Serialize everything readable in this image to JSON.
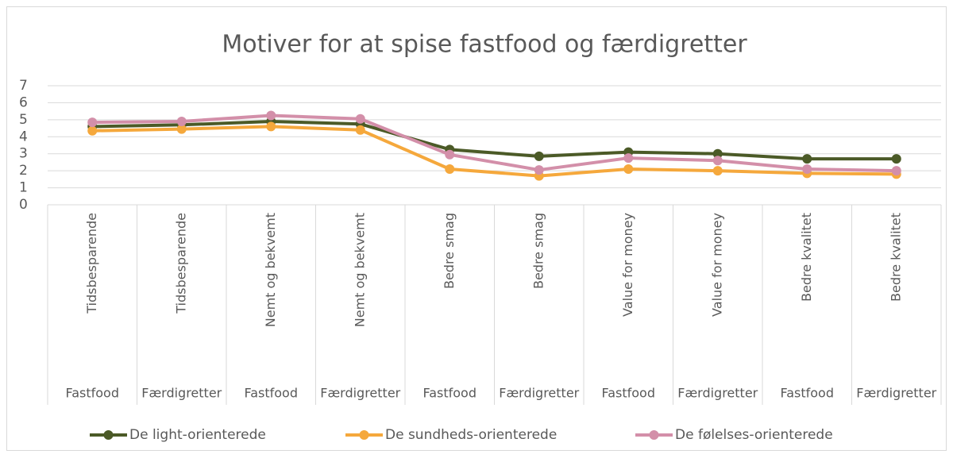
{
  "chart_data": {
    "type": "line",
    "title": "Motiver for at spise fastfood og færdigretter",
    "categories": [
      "Tidsbesparende",
      "Tidsbesparende",
      "Nemt og bekvemt",
      "Nemt og bekvemt",
      "Bedre smag",
      "Bedre smag",
      "Value for money",
      "Value for money",
      "Bedre kvalitet",
      "Bedre kvalitet"
    ],
    "groups": [
      "Fastfood",
      "Færdigretter",
      "Fastfood",
      "Færdigretter",
      "Fastfood",
      "Færdigretter",
      "Fastfood",
      "Færdigretter",
      "Fastfood",
      "Færdigretter"
    ],
    "series": [
      {
        "name": "De light-orienterede",
        "color": "#4b5a27",
        "values": [
          4.6,
          4.7,
          4.9,
          4.75,
          3.25,
          2.85,
          3.1,
          3.0,
          2.7,
          2.7
        ]
      },
      {
        "name": "De sundheds-orienterede",
        "color": "#f5a83c",
        "values": [
          4.35,
          4.45,
          4.6,
          4.4,
          2.1,
          1.7,
          2.1,
          2.0,
          1.85,
          1.8
        ]
      },
      {
        "name": "De følelses-orienterede",
        "color": "#d38fa9",
        "values": [
          4.85,
          4.9,
          5.25,
          5.05,
          2.95,
          2.05,
          2.75,
          2.6,
          2.1,
          2.0
        ]
      }
    ],
    "ylim": [
      0,
      7
    ],
    "yticks": [
      0,
      1,
      2,
      3,
      4,
      5,
      6,
      7
    ],
    "grid": true,
    "legend": "bottom"
  }
}
